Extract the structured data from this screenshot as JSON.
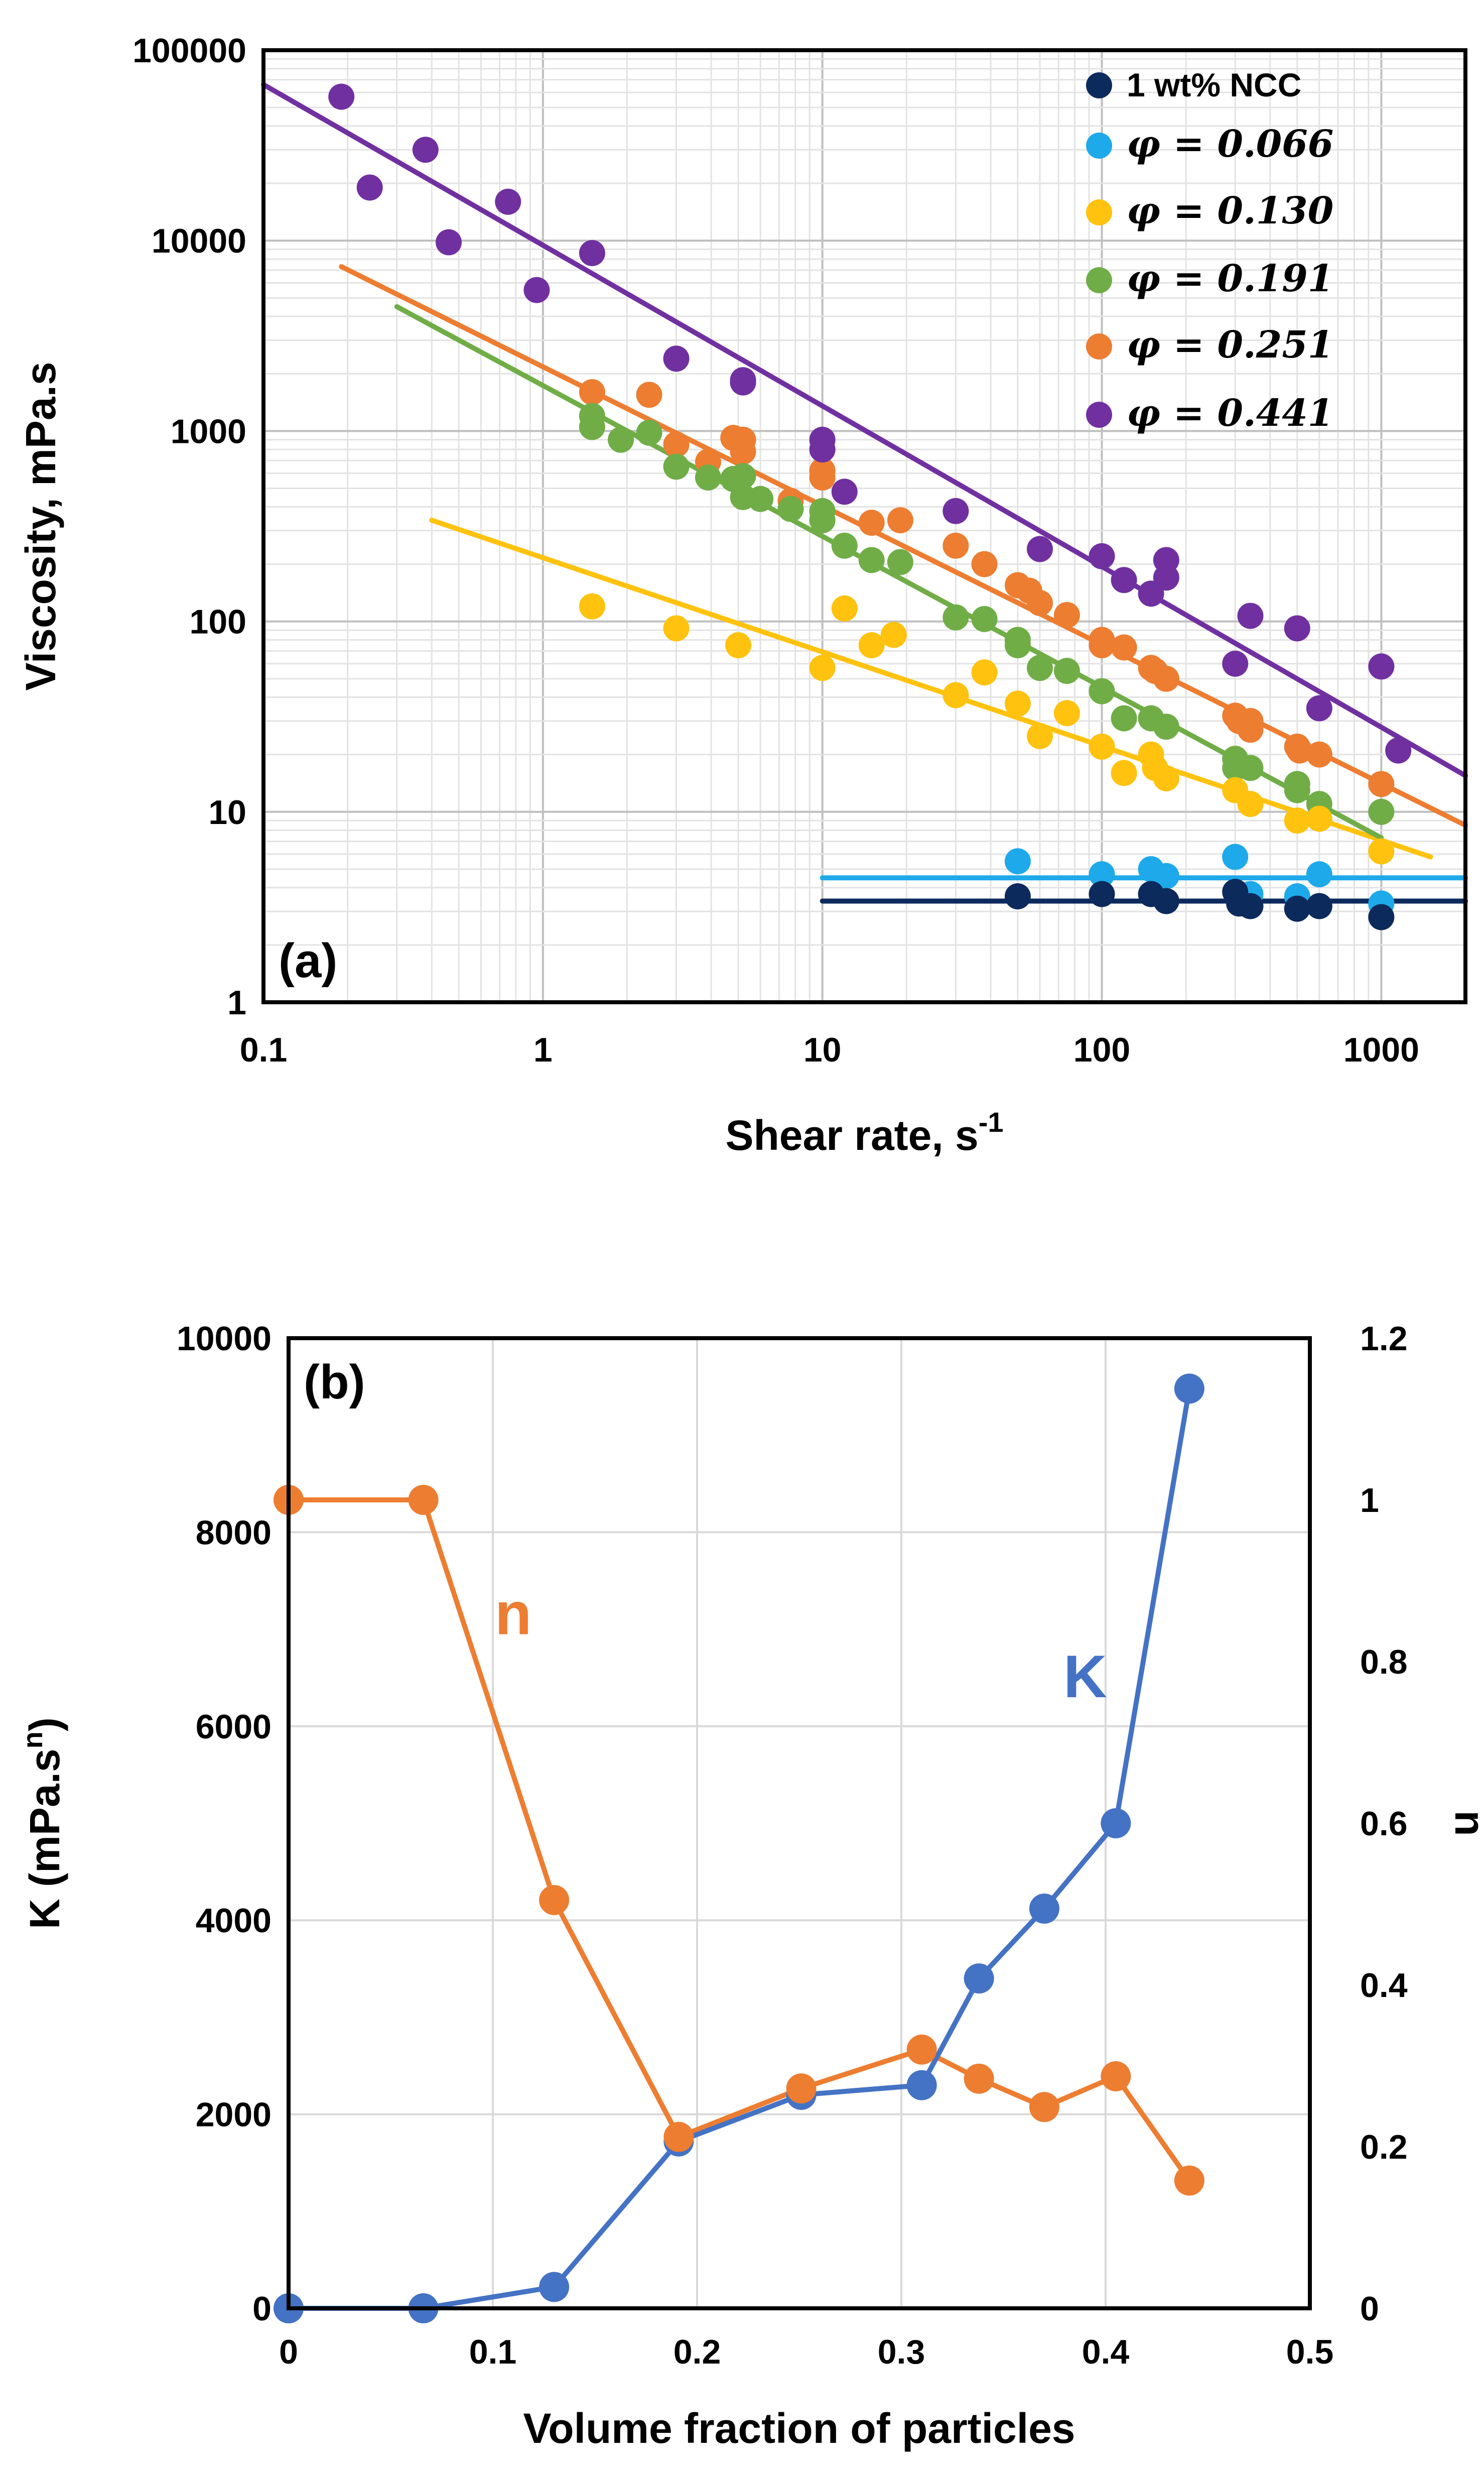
{
  "colors": {
    "ncc": "#0d2a5c",
    "phi066": "#1ea9ea",
    "phi130": "#ffc20e",
    "phi191": "#70ad47",
    "phi251": "#ed7d31",
    "phi441": "#7030a0",
    "n_line": "#ed7d31",
    "k_line": "#4472c4",
    "grid": "#d9d9d9"
  },
  "chart_data": [
    {
      "type": "scatter",
      "panel_label": "(a)",
      "xlabel": "Shear rate, s",
      "xlabel_sup": "-1",
      "ylabel": "Viscosity, mPa.s",
      "xscale": "log",
      "yscale": "log",
      "xlim": [
        0.1,
        2000
      ],
      "ylim": [
        1,
        100000
      ],
      "xticks": [
        0.1,
        1,
        10,
        100,
        1000
      ],
      "xtick_labels": [
        "0.1",
        "1",
        "10",
        "100",
        "1000"
      ],
      "yticks": [
        1,
        10,
        100,
        1000,
        10000,
        100000
      ],
      "ytick_labels": [
        "1",
        "10",
        "100",
        "1000",
        "10000",
        "100000"
      ],
      "grid": true,
      "legend_position": "top-right",
      "series": [
        {
          "name": "1 wt% NCC",
          "color_key": "ncc",
          "points": [
            [
              50,
              3.6
            ],
            [
              100,
              3.7
            ],
            [
              150,
              3.7
            ],
            [
              170,
              3.4
            ],
            [
              300,
              3.8
            ],
            [
              310,
              3.3
            ],
            [
              340,
              3.2
            ],
            [
              500,
              3.1
            ],
            [
              600,
              3.2
            ],
            [
              1000,
              2.8
            ]
          ],
          "fit": {
            "x_from": 10,
            "x_to": 2000,
            "y_from": 3.4,
            "y_to": 3.4
          }
        },
        {
          "name": "φ = 0.066",
          "color_key": "phi066",
          "points": [
            [
              50,
              5.5
            ],
            [
              100,
              4.7
            ],
            [
              150,
              5.0
            ],
            [
              170,
              4.6
            ],
            [
              300,
              5.8
            ],
            [
              340,
              3.7
            ],
            [
              500,
              3.6
            ],
            [
              600,
              4.7
            ],
            [
              1000,
              3.3
            ]
          ],
          "fit": {
            "x_from": 10,
            "x_to": 2000,
            "y_from": 4.5,
            "y_to": 4.5
          }
        },
        {
          "name": "φ = 0.130",
          "color_key": "phi130",
          "points": [
            [
              1.5,
              120
            ],
            [
              3,
              92
            ],
            [
              5,
              75
            ],
            [
              10,
              57
            ],
            [
              12,
              117
            ],
            [
              15,
              75
            ],
            [
              18,
              85
            ],
            [
              30,
              41
            ],
            [
              38,
              54
            ],
            [
              50,
              37
            ],
            [
              60,
              25
            ],
            [
              75,
              33
            ],
            [
              100,
              22
            ],
            [
              120,
              16
            ],
            [
              150,
              20
            ],
            [
              155,
              17
            ],
            [
              170,
              15
            ],
            [
              300,
              13
            ],
            [
              340,
              11
            ],
            [
              500,
              9
            ],
            [
              600,
              9.2
            ],
            [
              1000,
              6.2
            ]
          ],
          "fit": {
            "x_from": 0.4,
            "x_to": 1500,
            "y_from": 340,
            "y_to": 5.8
          }
        },
        {
          "name": "φ = 0.191",
          "color_key": "phi191",
          "points": [
            [
              1.5,
              1200
            ],
            [
              1.5,
              1050
            ],
            [
              1.9,
              900
            ],
            [
              2.4,
              980
            ],
            [
              3,
              650
            ],
            [
              3.9,
              570
            ],
            [
              4.8,
              560
            ],
            [
              5.2,
              450
            ],
            [
              5.2,
              580
            ],
            [
              6,
              440
            ],
            [
              7.7,
              390
            ],
            [
              10,
              340
            ],
            [
              10,
              380
            ],
            [
              12,
              250
            ],
            [
              15,
              210
            ],
            [
              19,
              205
            ],
            [
              30,
              105
            ],
            [
              38,
              103
            ],
            [
              50,
              80
            ],
            [
              50,
              75
            ],
            [
              60,
              57
            ],
            [
              75,
              55
            ],
            [
              100,
              43
            ],
            [
              120,
              31
            ],
            [
              150,
              31
            ],
            [
              170,
              28
            ],
            [
              300,
              19
            ],
            [
              300,
              17
            ],
            [
              340,
              17
            ],
            [
              500,
              14
            ],
            [
              500,
              13
            ],
            [
              600,
              11
            ],
            [
              1000,
              10
            ]
          ],
          "fit": {
            "x_from": 0.3,
            "x_to": 1000,
            "y_from": 4500,
            "y_to": 7.3
          }
        },
        {
          "name": "φ = 0.251",
          "color_key": "phi251",
          "points": [
            [
              1.5,
              1600
            ],
            [
              2.4,
              1550
            ],
            [
              3,
              850
            ],
            [
              3.9,
              690
            ],
            [
              4.8,
              920
            ],
            [
              5.2,
              900
            ],
            [
              5.2,
              780
            ],
            [
              7.7,
              430
            ],
            [
              10,
              570
            ],
            [
              10,
              620
            ],
            [
              15,
              330
            ],
            [
              19,
              340
            ],
            [
              30,
              250
            ],
            [
              38,
              200
            ],
            [
              50,
              155
            ],
            [
              55,
              145
            ],
            [
              60,
              125
            ],
            [
              75,
              108
            ],
            [
              100,
              80
            ],
            [
              100,
              75
            ],
            [
              120,
              73
            ],
            [
              150,
              57
            ],
            [
              155,
              55
            ],
            [
              170,
              50
            ],
            [
              300,
              32
            ],
            [
              310,
              30
            ],
            [
              340,
              30
            ],
            [
              340,
              27
            ],
            [
              500,
              22
            ],
            [
              510,
              21
            ],
            [
              600,
              20
            ],
            [
              1000,
              14
            ]
          ],
          "fit": {
            "x_from": 0.19,
            "x_to": 2000,
            "y_from": 7300,
            "y_to": 8.5
          }
        },
        {
          "name": "φ = 0.441",
          "color_key": "phi441",
          "points": [
            [
              0.19,
              57000
            ],
            [
              0.24,
              19000
            ],
            [
              0.38,
              30000
            ],
            [
              0.46,
              9800
            ],
            [
              0.75,
              16000
            ],
            [
              0.95,
              5500
            ],
            [
              1.5,
              8600
            ],
            [
              3,
              2400
            ],
            [
              5.2,
              1850
            ],
            [
              5.2,
              1800
            ],
            [
              10,
              900
            ],
            [
              10,
              800
            ],
            [
              12,
              480
            ],
            [
              30,
              380
            ],
            [
              60,
              240
            ],
            [
              100,
              220
            ],
            [
              120,
              165
            ],
            [
              150,
              140
            ],
            [
              170,
              210
            ],
            [
              170,
              170
            ],
            [
              300,
              60
            ],
            [
              340,
              107
            ],
            [
              500,
              92
            ],
            [
              600,
              35
            ],
            [
              1000,
              58
            ],
            [
              1150,
              21
            ]
          ],
          "fit": {
            "x_from": 0.1,
            "x_to": 2000,
            "y_from": 66000,
            "y_to": 15.5
          }
        }
      ]
    },
    {
      "type": "line",
      "panel_label": "(b)",
      "xlabel": "Volume fraction of particles",
      "ylabel": "K (mPa.s",
      "ylabel_sup": "n",
      "ylabel_end": ")",
      "y2label": "n",
      "xlim": [
        0,
        0.5
      ],
      "ylim": [
        0,
        10000
      ],
      "y2lim": [
        0,
        1.2
      ],
      "xticks": [
        0,
        0.1,
        0.2,
        0.3,
        0.4,
        0.5
      ],
      "xtick_labels": [
        "0",
        "0.1",
        "0.2",
        "0.3",
        "0.4",
        "0.5"
      ],
      "yticks": [
        0,
        2000,
        4000,
        6000,
        8000,
        10000
      ],
      "ytick_labels": [
        "0",
        "2000",
        "4000",
        "6000",
        "8000",
        "10000"
      ],
      "y2ticks": [
        0,
        0.2,
        0.4,
        0.6,
        0.8,
        1,
        1.2
      ],
      "y2tick_labels": [
        "0",
        "0.2",
        "0.4",
        "0.6",
        "0.8",
        "1",
        "1.2"
      ],
      "grid": true,
      "annotations": [
        {
          "text": "n",
          "color_key": "n_line",
          "at": [
            0.11,
            6950
          ]
        },
        {
          "text": "K",
          "color_key": "k_line",
          "at": [
            0.39,
            6300
          ]
        }
      ],
      "series": [
        {
          "name": "n",
          "axis": "right",
          "color_key": "n_line",
          "x": [
            0,
            0.066,
            0.13,
            0.191,
            0.251,
            0.31,
            0.338,
            0.37,
            0.405,
            0.441
          ],
          "values": [
            1.0,
            1.0,
            0.505,
            0.212,
            0.272,
            0.32,
            0.284,
            0.249,
            0.287,
            0.158
          ]
        },
        {
          "name": "K",
          "axis": "left",
          "color_key": "k_line",
          "x": [
            0,
            0.066,
            0.13,
            0.191,
            0.251,
            0.31,
            0.338,
            0.37,
            0.405,
            0.441
          ],
          "values": [
            0,
            0,
            220,
            1720,
            2200,
            2300,
            3400,
            4120,
            5000,
            9480
          ]
        }
      ]
    }
  ]
}
